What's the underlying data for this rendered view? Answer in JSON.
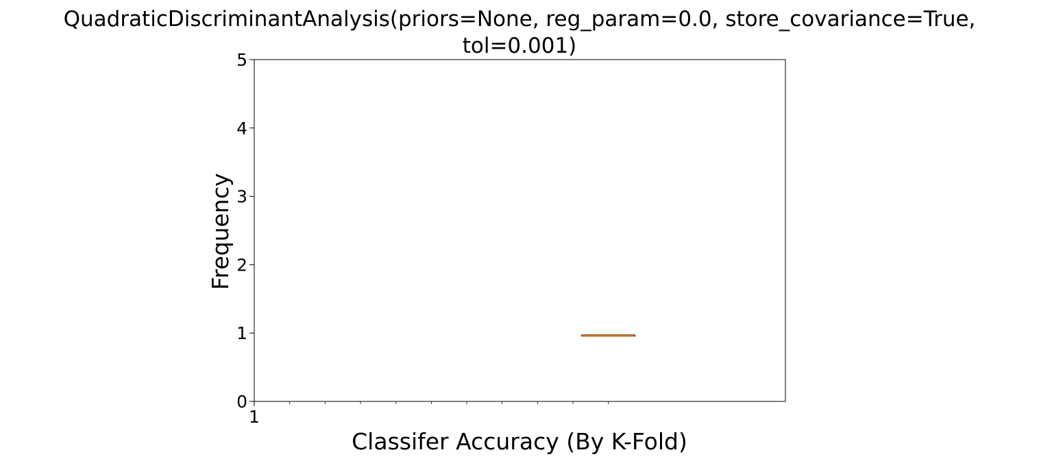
{
  "chart_data": {
    "type": "box",
    "title_lines": [
      "QuadraticDiscriminantAnalysis(priors=None, reg_param=0.0, store_covariance=True,",
      "tol=0.001)"
    ],
    "xlabel": "Classifer Accuracy (By K-Fold)",
    "ylabel": "Frequency",
    "ylim": [
      0,
      5
    ],
    "yticks": [
      0,
      1,
      2,
      3,
      4,
      5
    ],
    "xlim": [
      0,
      1.5
    ],
    "xtick_labels": [
      {
        "value": 0,
        "label": "1"
      }
    ],
    "x_minor_ticks": [
      0.1,
      0.2,
      0.3,
      0.4,
      0.5,
      0.6,
      0.7,
      0.8,
      0.9,
      1.0
    ],
    "boxes": [
      {
        "position": 1.0,
        "width": 0.15,
        "whisker_low": 0.955,
        "q1": 0.955,
        "median": 0.96,
        "q3": 0.97,
        "whisker_high": 0.97
      }
    ],
    "colors": {
      "median": "#ff7f0e",
      "box": "#000000"
    },
    "grid": false
  }
}
